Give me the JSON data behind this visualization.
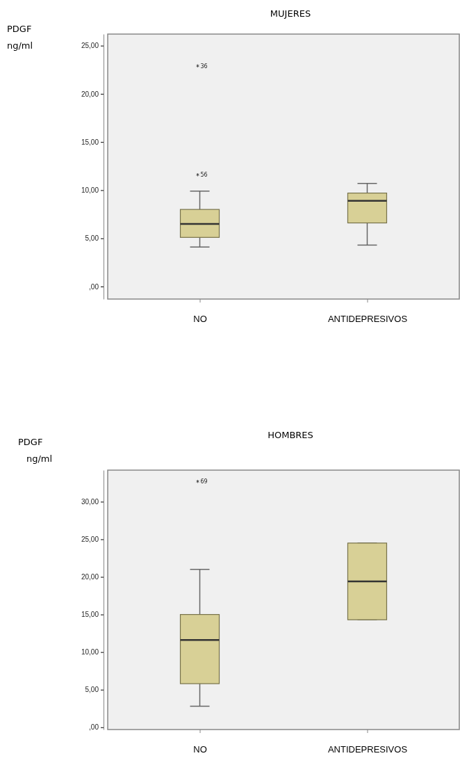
{
  "chart_data": [
    {
      "type": "box",
      "title": "MUJERES",
      "ylabel": "PDGF ng/ml",
      "categories": [
        "NO",
        "ANTIDEPRESIVOS"
      ],
      "color": "#d8d096",
      "boxes": [
        {
          "low": 4.1,
          "q1": 5.1,
          "median": 6.5,
          "q3": 8.0,
          "high": 9.9,
          "outliers": [
            22.9,
            11.6
          ]
        },
        {
          "low": 4.3,
          "q1": 6.6,
          "median": 8.9,
          "q3": 9.7,
          "high": 10.7
        }
      ],
      "annotations": [
        "36",
        "56"
      ],
      "ylim": [
        -1.3,
        26.2
      ],
      "yticks": [
        {
          "value": 0,
          "label": ",00"
        },
        {
          "value": 5,
          "label": "5,00"
        },
        {
          "value": 10,
          "label": "10,00"
        },
        {
          "value": 15,
          "label": "15,00"
        },
        {
          "value": 20,
          "label": "20,00"
        },
        {
          "value": 25,
          "label": "25,00"
        }
      ],
      "grid": false
    },
    {
      "type": "box",
      "title": "HOMBRES",
      "ylabel": "PDGF ng/ml",
      "categories": [
        "NO",
        "ANTIDEPRESIVOS"
      ],
      "color": "#d8d096",
      "boxes": [
        {
          "low": 2.8,
          "q1": 5.8,
          "median": 11.6,
          "q3": 15.0,
          "high": 21.0,
          "outliers": [
            32.7
          ]
        },
        {
          "low": 14.3,
          "q1": 14.3,
          "median": 19.4,
          "q3": 24.5,
          "high": 24.5
        }
      ],
      "annotations": [
        "69"
      ],
      "ylim": [
        -0.3,
        34.2
      ],
      "yticks": [
        {
          "value": 0,
          "label": ",00"
        },
        {
          "value": 5,
          "label": "5,00"
        },
        {
          "value": 10,
          "label": "10,00"
        },
        {
          "value": 15,
          "label": "15,00"
        },
        {
          "value": 20,
          "label": "20,00"
        },
        {
          "value": 25,
          "label": "25,00"
        },
        {
          "value": 30,
          "label": "30,00"
        }
      ],
      "grid": false
    }
  ]
}
